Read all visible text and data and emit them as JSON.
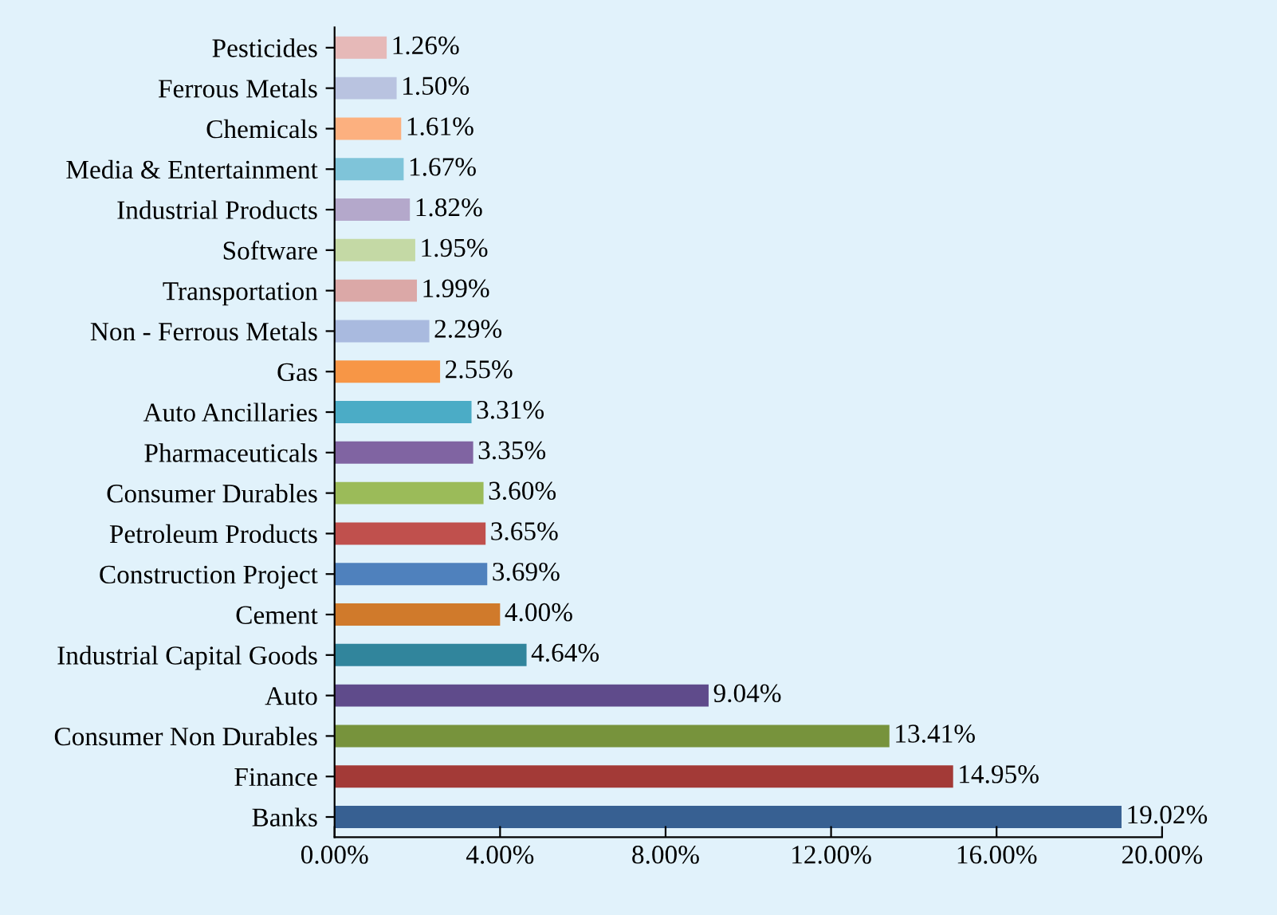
{
  "chart_data": {
    "type": "bar",
    "orientation": "horizontal",
    "categories": [
      "Pesticides",
      "Ferrous Metals",
      "Chemicals",
      "Media & Entertainment",
      "Industrial Products",
      "Software",
      "Transportation",
      "Non - Ferrous Metals",
      "Gas",
      "Auto Ancillaries",
      "Pharmaceuticals",
      "Consumer Durables",
      "Petroleum Products",
      "Construction Project",
      "Cement",
      "Industrial Capital Goods",
      "Auto",
      "Consumer Non Durables",
      "Finance",
      "Banks"
    ],
    "values": [
      1.26,
      1.5,
      1.61,
      1.67,
      1.82,
      1.95,
      1.99,
      2.29,
      2.55,
      3.31,
      3.35,
      3.6,
      3.65,
      3.69,
      4.0,
      4.64,
      9.04,
      13.41,
      14.95,
      19.02
    ],
    "colors": [
      "#e6b9b8",
      "#b9c3e0",
      "#fcb07f",
      "#7fc4d9",
      "#b4a8cb",
      "#c4d9a5",
      "#dba8a7",
      "#a9badf",
      "#f79646",
      "#4bacc6",
      "#8064a2",
      "#9bbb59",
      "#c0504d",
      "#4f81bd",
      "#d07a2b",
      "#31859c",
      "#5f4b8b",
      "#77933c",
      "#a33a37",
      "#376092"
    ],
    "value_labels": [
      "1.26%",
      "1.50%",
      "1.61%",
      "1.67%",
      "1.82%",
      "1.95%",
      "1.99%",
      "2.29%",
      "2.55%",
      "3.31%",
      "3.35%",
      "3.60%",
      "3.65%",
      "3.69%",
      "4.00%",
      "4.64%",
      "9.04%",
      "13.41%",
      "14.95%",
      "19.02%"
    ],
    "xlim": [
      0,
      20
    ],
    "xticks": [
      {
        "value": 0,
        "label": "0.00%"
      },
      {
        "value": 4,
        "label": "4.00%"
      },
      {
        "value": 8,
        "label": "8.00%"
      },
      {
        "value": 12,
        "label": "12.00%"
      },
      {
        "value": 16,
        "label": "16.00%"
      },
      {
        "value": 20,
        "label": "20.00%"
      }
    ],
    "grid": false,
    "legend": false
  }
}
